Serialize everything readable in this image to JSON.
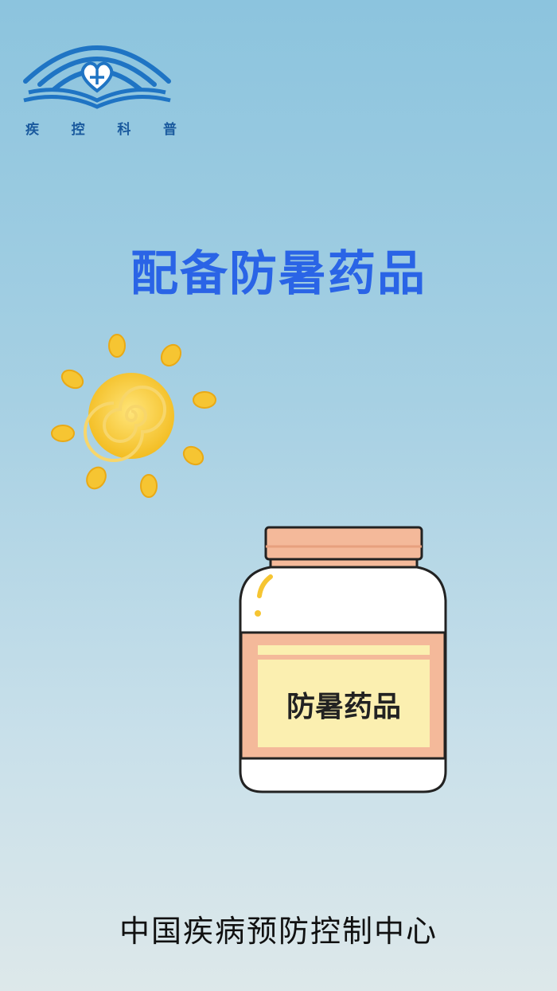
{
  "logo": {
    "text": [
      "疾",
      "控",
      "科",
      "普"
    ],
    "icon": "open-book-heart-icon",
    "color": "#1a5a9e"
  },
  "headline": "配备防暑药品",
  "illustration": {
    "sun_icon": "sun-icon",
    "jar_icon": "medicine-jar-icon",
    "jar_label": "防暑药品"
  },
  "footer": "中国疾病预防控制中心",
  "colors": {
    "headline": "#2a64e6",
    "sun": "#f5c534",
    "jar_cap": "#f4b99a",
    "jar_label_bg": "#fbefb0"
  }
}
